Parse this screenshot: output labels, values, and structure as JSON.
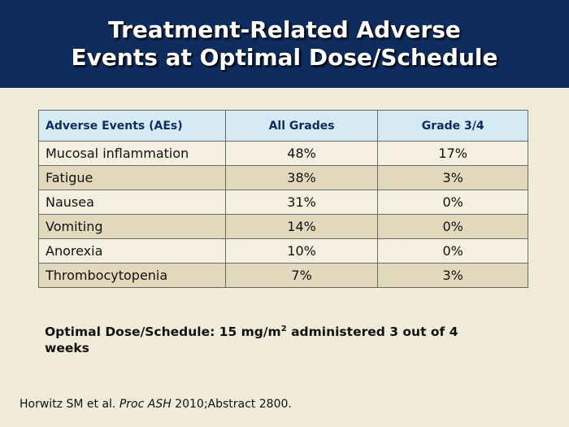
{
  "slide": {
    "title_line1": "Treatment-Related Adverse",
    "title_line2": "Events at Optimal Dose/Schedule"
  },
  "table": {
    "headers": [
      "Adverse Events (AEs)",
      "All Grades",
      "Grade 3/4"
    ],
    "rows": [
      [
        "Mucosal inflammation",
        "48%",
        "17%"
      ],
      [
        "Fatigue",
        "38%",
        "3%"
      ],
      [
        "Nausea",
        "31%",
        "0%"
      ],
      [
        "Vomiting",
        "14%",
        "0%"
      ],
      [
        "Anorexia",
        "10%",
        "0%"
      ],
      [
        "Thrombocytopenia",
        "7%",
        "3%"
      ]
    ]
  },
  "note": {
    "text_before": "Optimal Dose/Schedule: 15 mg/m",
    "superscript": "2",
    "text_after": " administered 3 out of 4 weeks"
  },
  "citation": {
    "authors": "Horwitz SM et al. ",
    "journal": "Proc ASH",
    "rest": " 2010;Abstract 2800."
  }
}
